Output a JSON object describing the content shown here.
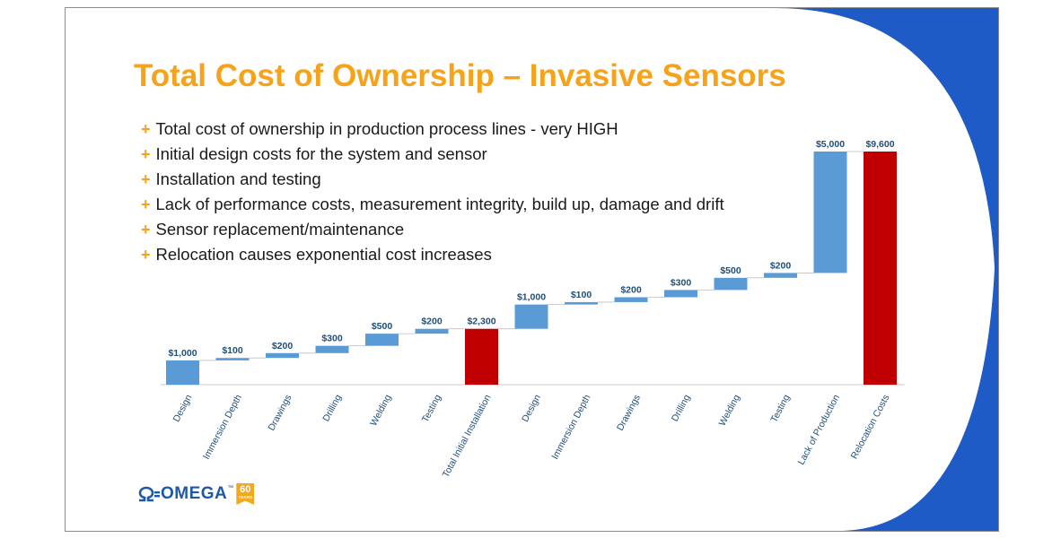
{
  "slide": {
    "title": "Total Cost of Ownership – Invasive Sensors",
    "title_color": "#f7a21b",
    "accent_blue": "#1e5bc6",
    "bullet_marker": "+",
    "bullets": [
      "Total cost of ownership in production process lines - very HIGH",
      "Initial design costs for the system and sensor",
      "Installation and testing",
      "Lack of performance costs, measurement integrity, build up, damage and drift",
      "Sensor replacement/maintenance",
      "Relocation causes exponential cost increases"
    ]
  },
  "chart_data": {
    "type": "bar",
    "subtype": "waterfall",
    "categories": [
      "Design",
      "Immersion Depth",
      "Drawings",
      "Drilling",
      "Welding",
      "Testing",
      "Total Initial Installation",
      "Design",
      "Immersion Depth",
      "Drawings",
      "Drilling",
      "Welding",
      "Testing",
      "Lack of Production",
      "Relocation Costs"
    ],
    "values": [
      1000,
      100,
      200,
      300,
      500,
      200,
      2300,
      1000,
      100,
      200,
      300,
      500,
      200,
      5000,
      9600
    ],
    "data_labels": [
      "$1,000",
      "$100",
      "$200",
      "$300",
      "$500",
      "$200",
      "$2,300",
      "$1,000",
      "$100",
      "$200",
      "$300",
      "$500",
      "$200",
      "$5,000",
      "$9,600"
    ],
    "is_total": [
      false,
      false,
      false,
      false,
      false,
      false,
      true,
      false,
      false,
      false,
      false,
      false,
      false,
      false,
      true
    ],
    "ylim": [
      0,
      9600
    ],
    "colors": {
      "increase": "#5b9bd5",
      "total": "#c00000"
    },
    "grid": false,
    "legend": "none"
  },
  "logo": {
    "text": "OMEGA",
    "trademark": "™",
    "badge_number": "60",
    "badge_text": "YEARS",
    "color": "#1c5aa8",
    "badge_color": "#f4a91c"
  }
}
